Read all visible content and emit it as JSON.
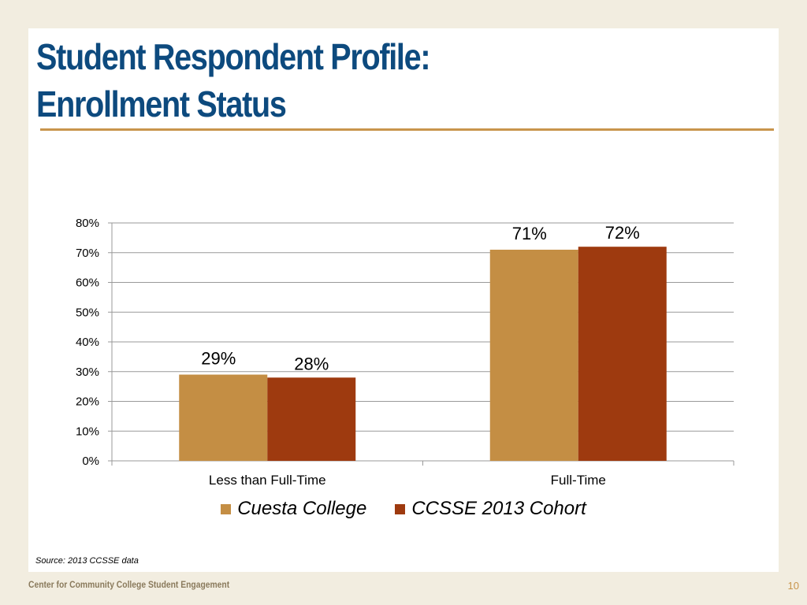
{
  "slide": {
    "title_line1": "Student Respondent Profile:",
    "title_line2": "Enrollment Status",
    "source": "Source: 2013 CCSSE data",
    "footer": "Center for Community College Student Engagement",
    "page_number": "10"
  },
  "colors": {
    "title": "#0d4a7e",
    "rule": "#c8954c",
    "cuesta": "#c48e44",
    "cohort": "#9e3a0f"
  },
  "chart_data": {
    "type": "bar",
    "categories": [
      "Less than Full-Time",
      "Full-Time"
    ],
    "series": [
      {
        "name": "Cuesta College",
        "values": [
          29,
          71
        ],
        "labels": [
          "29%",
          "71%"
        ],
        "color": "#c48e44"
      },
      {
        "name": "CCSSE 2013 Cohort",
        "values": [
          28,
          72
        ],
        "labels": [
          "28%",
          "72%"
        ],
        "color": "#9e3a0f"
      }
    ],
    "yticks": [
      "0%",
      "10%",
      "20%",
      "30%",
      "40%",
      "50%",
      "60%",
      "70%",
      "80%"
    ],
    "ylim": [
      0,
      80
    ],
    "grid": true,
    "legend": "bottom"
  }
}
